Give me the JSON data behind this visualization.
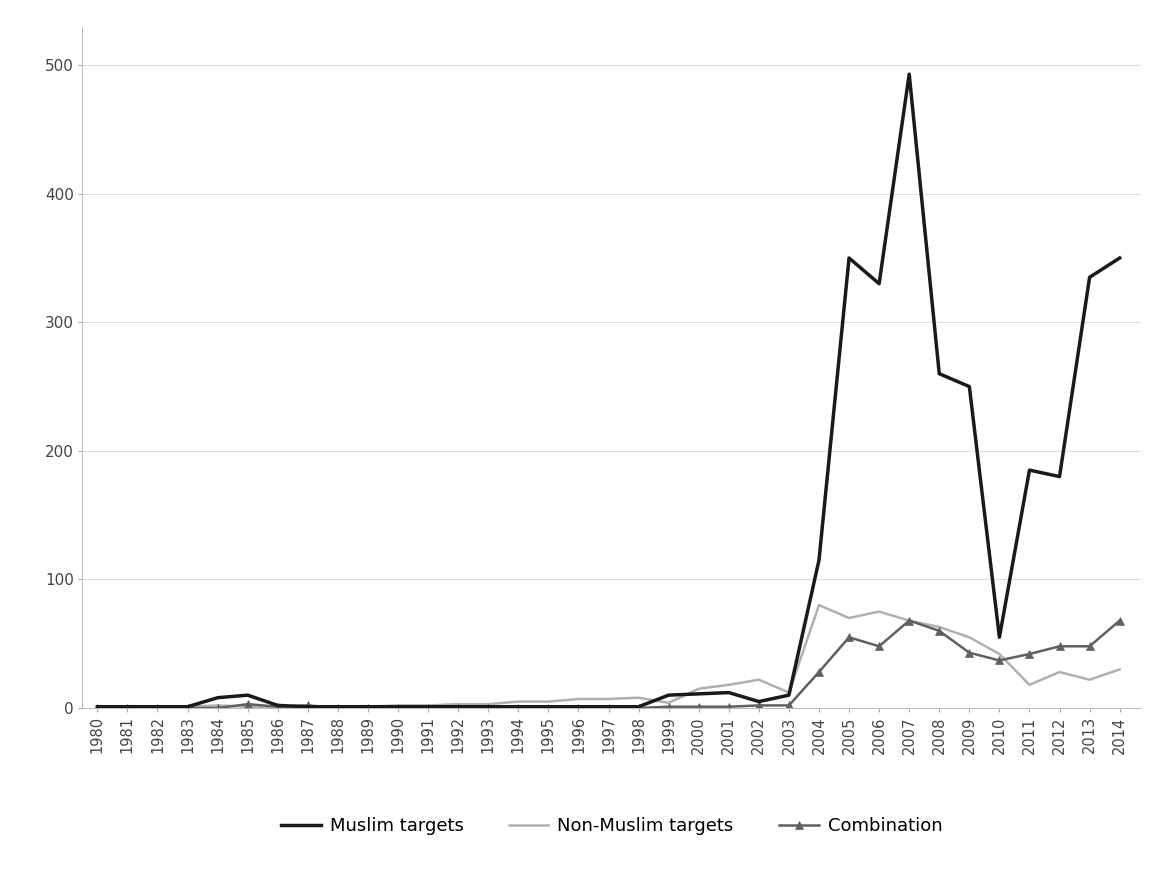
{
  "years": [
    1980,
    1981,
    1982,
    1983,
    1984,
    1985,
    1986,
    1987,
    1988,
    1989,
    1990,
    1991,
    1992,
    1993,
    1994,
    1995,
    1996,
    1997,
    1998,
    1999,
    2000,
    2001,
    2002,
    2003,
    2004,
    2005,
    2006,
    2007,
    2008,
    2009,
    2010,
    2011,
    2012,
    2013,
    2014
  ],
  "muslim_targets": [
    1,
    1,
    1,
    1,
    8,
    10,
    2,
    1,
    1,
    1,
    1,
    1,
    1,
    1,
    1,
    1,
    1,
    1,
    1,
    10,
    11,
    12,
    5,
    10,
    115,
    350,
    330,
    493,
    260,
    250,
    55,
    185,
    180,
    335,
    350
  ],
  "non_muslim_targets": [
    1,
    1,
    1,
    1,
    2,
    1,
    1,
    1,
    1,
    1,
    2,
    2,
    3,
    3,
    5,
    5,
    7,
    7,
    8,
    4,
    15,
    18,
    22,
    12,
    80,
    70,
    75,
    68,
    63,
    55,
    42,
    18,
    28,
    22,
    30
  ],
  "combination": [
    0,
    0,
    0,
    0,
    0,
    3,
    1,
    2,
    0,
    0,
    0,
    0,
    0,
    0,
    0,
    0,
    0,
    0,
    0,
    1,
    1,
    1,
    2,
    2,
    28,
    55,
    48,
    68,
    60,
    43,
    37,
    42,
    48,
    48,
    68
  ],
  "muslim_color": "#1a1a1a",
  "non_muslim_color": "#b0b0b0",
  "combination_color": "#606060",
  "background_color": "#ffffff",
  "ylim": [
    0,
    530
  ],
  "yticks": [
    0,
    100,
    200,
    300,
    400,
    500
  ],
  "legend_labels": [
    "Muslim targets",
    "Non-Muslim targets",
    "Combination"
  ],
  "figsize": [
    11.76,
    8.85
  ],
  "dpi": 100
}
